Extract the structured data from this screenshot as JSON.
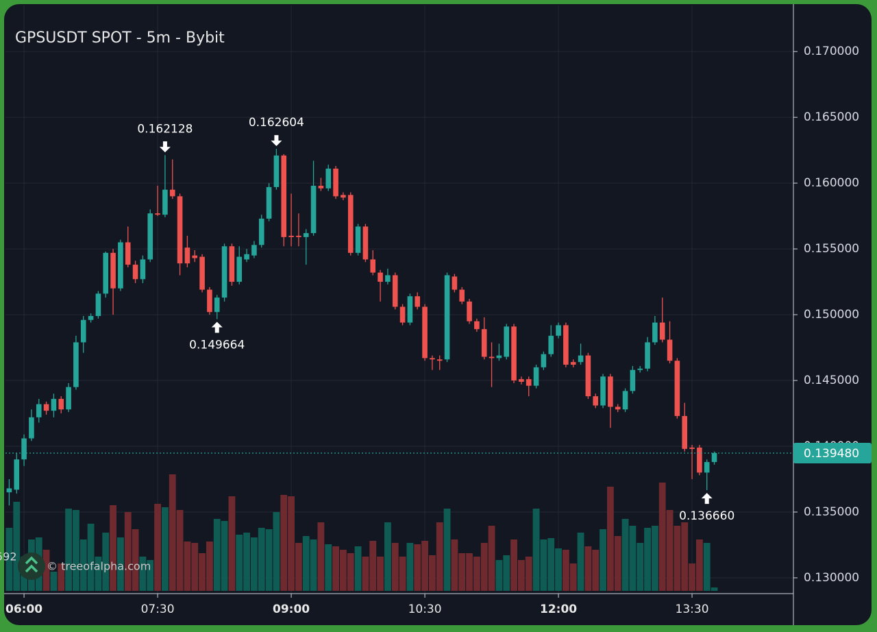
{
  "chart_data": {
    "type": "candlestick",
    "title": "GPSUSDT SPOT - 5m - Bybit",
    "watermark": "© treeofalpha.com",
    "left_label": "592",
    "x": [
      "05:50",
      "05:55",
      "06:00",
      "06:05",
      "06:10",
      "06:15",
      "06:20",
      "06:25",
      "06:30",
      "06:35",
      "06:40",
      "06:45",
      "06:50",
      "06:55",
      "07:00",
      "07:05",
      "07:10",
      "07:15",
      "07:20",
      "07:25",
      "07:30",
      "07:35",
      "07:40",
      "07:45",
      "07:50",
      "07:55",
      "08:00",
      "08:05",
      "08:10",
      "08:15",
      "08:20",
      "08:25",
      "08:30",
      "08:35",
      "08:40",
      "08:45",
      "08:50",
      "08:55",
      "09:00",
      "09:05",
      "09:10",
      "09:15",
      "09:20",
      "09:25",
      "09:30",
      "09:35",
      "09:40",
      "09:45",
      "09:50",
      "09:55",
      "10:00",
      "10:05",
      "10:10",
      "10:15",
      "10:20",
      "10:25",
      "10:30",
      "10:35",
      "10:40",
      "10:45",
      "10:50",
      "10:55",
      "11:00",
      "11:05",
      "11:10",
      "11:15",
      "11:20",
      "11:25",
      "11:30",
      "11:35",
      "11:40",
      "11:45",
      "11:50",
      "11:55",
      "12:00",
      "12:05",
      "12:10",
      "12:15",
      "12:20",
      "12:25",
      "12:30",
      "12:35",
      "12:40",
      "12:45",
      "12:50",
      "12:55",
      "13:00",
      "13:05",
      "13:10",
      "13:15",
      "13:20",
      "13:25",
      "13:30",
      "13:35",
      "13:40",
      "13:45"
    ],
    "open": [
      0.1365,
      0.1367,
      0.139,
      0.1406,
      0.1422,
      0.1432,
      0.1427,
      0.1436,
      0.1428,
      0.1445,
      0.1479,
      0.1496,
      0.1499,
      0.1516,
      0.1547,
      0.152,
      0.1555,
      0.1538,
      0.1527,
      0.1542,
      0.1577,
      0.1576,
      0.1595,
      0.159,
      0.1551,
      0.1545,
      0.1544,
      0.1519,
      0.1502,
      0.1513,
      0.1552,
      0.1525,
      0.1542,
      0.1545,
      0.1553,
      0.1573,
      0.1597,
      0.1621,
      0.156,
      0.156,
      0.1559,
      0.1562,
      0.1598,
      0.1596,
      0.1611,
      0.1591,
      0.1591,
      0.1547,
      0.1567,
      0.1542,
      0.1532,
      0.1525,
      0.153,
      0.1506,
      0.1494,
      0.1514,
      0.1506,
      0.1467,
      0.1466,
      0.1466,
      0.1529,
      0.1519,
      0.151,
      0.1495,
      0.1489,
      0.1468,
      0.1467,
      0.1468,
      0.1491,
      0.1451,
      0.1451,
      0.1446,
      0.146,
      0.147,
      0.1484,
      0.1492,
      0.1464,
      0.1464,
      0.1469,
      0.1438,
      0.1431,
      0.1453,
      0.143,
      0.1428,
      0.1442,
      0.1458,
      0.1459,
      0.1479,
      0.1494,
      0.1481,
      0.1465,
      0.1423,
      0.1399,
      0.1399,
      0.138,
      0.1388
    ],
    "high": [
      0.1375,
      0.1395,
      0.1409,
      0.1428,
      0.1436,
      0.1434,
      0.144,
      0.1438,
      0.1448,
      0.1484,
      0.1499,
      0.1501,
      0.1518,
      0.1548,
      0.155,
      0.1557,
      0.1567,
      0.1541,
      0.1545,
      0.158,
      0.1598,
      0.162128,
      0.1618,
      0.1592,
      0.156,
      0.1549,
      0.1546,
      0.1521,
      0.1515,
      0.1554,
      0.1554,
      0.1552,
      0.155,
      0.1556,
      0.1576,
      0.16,
      0.162604,
      0.1622,
      0.1592,
      0.1577,
      0.1565,
      0.1617,
      0.1604,
      0.1614,
      0.1613,
      0.1593,
      0.1593,
      0.1569,
      0.1569,
      0.1549,
      0.1534,
      0.1535,
      0.1532,
      0.1508,
      0.1516,
      0.1517,
      0.1508,
      0.1469,
      0.1469,
      0.1532,
      0.1531,
      0.1521,
      0.1512,
      0.1497,
      0.1498,
      0.1479,
      0.1478,
      0.1493,
      0.1493,
      0.1453,
      0.1453,
      0.1462,
      0.1472,
      0.1492,
      0.1494,
      0.1494,
      0.1466,
      0.1478,
      0.1471,
      0.144,
      0.1455,
      0.1455,
      0.1432,
      0.1444,
      0.1461,
      0.1461,
      0.1483,
      0.1499,
      0.1513,
      0.1495,
      0.1467,
      0.1433,
      0.1401,
      0.1401,
      0.139,
      0.1396
    ],
    "low": [
      0.1355,
      0.1364,
      0.1385,
      0.1404,
      0.1418,
      0.1424,
      0.1422,
      0.1425,
      0.1426,
      0.1443,
      0.1471,
      0.1494,
      0.1497,
      0.1513,
      0.15,
      0.1518,
      0.1536,
      0.1524,
      0.1524,
      0.154,
      0.1575,
      0.1574,
      0.1588,
      0.153,
      0.1536,
      0.154,
      0.1517,
      0.15,
      0.149664,
      0.151,
      0.1522,
      0.1523,
      0.154,
      0.1543,
      0.1551,
      0.1571,
      0.1595,
      0.1552,
      0.1552,
      0.1552,
      0.1538,
      0.156,
      0.1594,
      0.1594,
      0.1588,
      0.1587,
      0.1545,
      0.1545,
      0.154,
      0.153,
      0.151,
      0.1523,
      0.1504,
      0.1492,
      0.1492,
      0.1504,
      0.1465,
      0.1458,
      0.1458,
      0.1464,
      0.1517,
      0.1508,
      0.1493,
      0.1487,
      0.1466,
      0.1445,
      0.1465,
      0.1466,
      0.1448,
      0.1447,
      0.1438,
      0.1444,
      0.1458,
      0.1468,
      0.1482,
      0.146,
      0.146,
      0.1462,
      0.1436,
      0.1429,
      0.1429,
      0.1414,
      0.1426,
      0.1426,
      0.144,
      0.1456,
      0.1457,
      0.1477,
      0.1479,
      0.1463,
      0.1421,
      0.1396,
      0.1375,
      0.1378,
      0.13666,
      0.1386
    ],
    "close": [
      0.1368,
      0.139,
      0.1406,
      0.1422,
      0.1432,
      0.1427,
      0.1436,
      0.1428,
      0.1445,
      0.1479,
      0.1496,
      0.1499,
      0.1516,
      0.1547,
      0.152,
      0.1555,
      0.1538,
      0.1527,
      0.1542,
      0.1577,
      0.1576,
      0.1595,
      0.159,
      0.1539,
      0.1539,
      0.1543,
      0.1519,
      0.1502,
      0.1513,
      0.1552,
      0.1525,
      0.1544,
      0.1546,
      0.1553,
      0.1573,
      0.1597,
      0.1621,
      0.1559,
      0.1559,
      0.1559,
      0.1562,
      0.1598,
      0.1596,
      0.1611,
      0.159,
      0.1589,
      0.1547,
      0.1567,
      0.1542,
      0.1532,
      0.1525,
      0.153,
      0.1506,
      0.1494,
      0.1514,
      0.1506,
      0.1467,
      0.1466,
      0.1465,
      0.153,
      0.1519,
      0.151,
      0.1495,
      0.1489,
      0.1468,
      0.1467,
      0.1469,
      0.1491,
      0.145,
      0.1449,
      0.1446,
      0.146,
      0.147,
      0.1484,
      0.1492,
      0.1462,
      0.1462,
      0.1469,
      0.1438,
      0.1431,
      0.1453,
      0.143,
      0.1428,
      0.1442,
      0.1458,
      0.1459,
      0.1479,
      0.1494,
      0.1481,
      0.1465,
      0.1423,
      0.1398,
      0.1398,
      0.138,
      0.1388,
      0.13948
    ],
    "volume": [
      92,
      130,
      50,
      75,
      78,
      60,
      28,
      40,
      120,
      118,
      75,
      98,
      50,
      85,
      125,
      78,
      115,
      90,
      50,
      45,
      127,
      122,
      170,
      118,
      72,
      70,
      55,
      72,
      105,
      102,
      138,
      82,
      85,
      78,
      92,
      90,
      115,
      140,
      138,
      70,
      80,
      75,
      100,
      68,
      65,
      60,
      55,
      65,
      50,
      73,
      50,
      100,
      70,
      50,
      70,
      68,
      73,
      52,
      100,
      120,
      75,
      55,
      55,
      50,
      70,
      95,
      45,
      52,
      75,
      45,
      50,
      120,
      75,
      77,
      62,
      60,
      40,
      85,
      65,
      60,
      90,
      152,
      80,
      105,
      95,
      70,
      92,
      95,
      158,
      118,
      95,
      100,
      40,
      75,
      70,
      5
    ],
    "up_color": "#26a69a",
    "down_color": "#ef5350",
    "volume_up_color": "#0f5c55",
    "volume_down_color": "#6e2a2e",
    "ylim": [
      0.1288,
      0.1735
    ],
    "yticks": [
      {
        "value": 0.13,
        "label": "0.130000"
      },
      {
        "value": 0.135,
        "label": "0.135000"
      },
      {
        "value": 0.14,
        "label": "0.140000"
      },
      {
        "value": 0.145,
        "label": "0.145000"
      },
      {
        "value": 0.15,
        "label": "0.150000"
      },
      {
        "value": 0.155,
        "label": "0.155000"
      },
      {
        "value": 0.16,
        "label": "0.160000"
      },
      {
        "value": 0.165,
        "label": "0.165000"
      },
      {
        "value": 0.17,
        "label": "0.170000"
      }
    ],
    "xticks": [
      "06:00",
      "07:30",
      "09:00",
      "10:30",
      "12:00",
      "13:30"
    ],
    "grid": true,
    "last_price": {
      "value": 0.13948,
      "label": "0.139480"
    },
    "annotations": [
      {
        "x": "07:35",
        "value": 0.162128,
        "label": "0.162128",
        "direction": "down"
      },
      {
        "x": "08:50",
        "value": 0.162604,
        "label": "0.162604",
        "direction": "down"
      },
      {
        "x": "08:10",
        "value": 0.149664,
        "label": "0.149664",
        "direction": "up"
      },
      {
        "x": "13:40",
        "value": 0.13666,
        "label": "0.136660",
        "direction": "up"
      }
    ]
  }
}
